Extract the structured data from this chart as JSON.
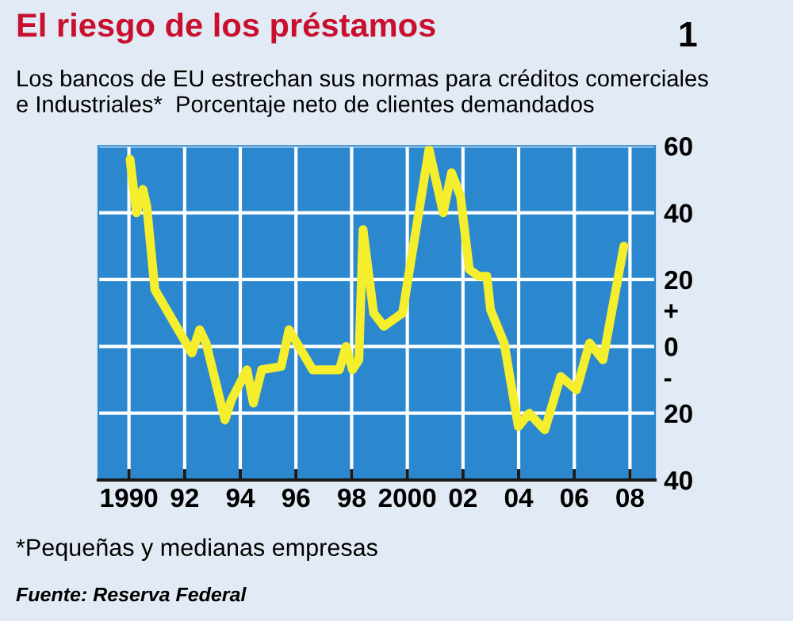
{
  "chart_data": {
    "type": "line",
    "title": "El riesgo de los préstamos",
    "subtitle": "Los bancos de EU estrechan sus normas para créditos comerciales\ne Industriales*  Porcentaje neto de clientes demandados",
    "x": [
      1990.04,
      1990.27,
      1990.5,
      1990.64,
      1990.93,
      1992.26,
      1992.54,
      1992.77,
      1993.45,
      1993.68,
      1994.24,
      1994.47,
      1994.77,
      1995.47,
      1995.75,
      1996.6,
      1997.56,
      1997.8,
      1998.03,
      1998.26,
      1998.41,
      1998.79,
      1999.16,
      1999.83,
      2000.78,
      2001.29,
      2001.59,
      2001.91,
      2002.23,
      2002.57,
      2002.86,
      2002.99,
      2003.48,
      2003.99,
      2004.38,
      2004.94,
      2005.51,
      2006.08,
      2006.55,
      2007.03,
      2007.78
    ],
    "series": [
      {
        "color": "#f5ee2c",
        "values": [
          56,
          40,
          47,
          42,
          17,
          -2,
          5,
          1,
          -22,
          -16,
          -7,
          -17,
          -7,
          -6,
          5,
          -7,
          -7,
          0,
          -7,
          -4,
          35,
          10,
          6,
          10,
          59,
          40,
          52,
          45,
          23,
          21,
          21,
          11,
          1,
          -24,
          -20,
          -25,
          -9,
          -13,
          1,
          -4,
          30
        ]
      }
    ],
    "xlim": [
      1988.9,
      2008.9
    ],
    "xticks": [
      {
        "value": 1990,
        "label": "1990"
      },
      {
        "value": 1992,
        "label": "92"
      },
      {
        "value": 1994,
        "label": "94"
      },
      {
        "value": 1996,
        "label": "96"
      },
      {
        "value": 1998,
        "label": "98"
      },
      {
        "value": 2000,
        "label": "2000"
      },
      {
        "value": 2002,
        "label": "02"
      },
      {
        "value": 2004,
        "label": "04"
      },
      {
        "value": 2006,
        "label": "06"
      },
      {
        "value": 2008,
        "label": "08"
      }
    ],
    "ylim": [
      -40,
      60
    ],
    "yticks": [
      60,
      40,
      20,
      0,
      {
        "value": -20,
        "label": "20"
      },
      {
        "value": -40,
        "label": "40"
      }
    ],
    "grid": true,
    "marker": "none",
    "line_style": "solid",
    "annotations": [
      "+",
      "-",
      "1",
      "*Pequeñas y medianas empresas",
      "Fuente: Reserva Federal"
    ]
  }
}
